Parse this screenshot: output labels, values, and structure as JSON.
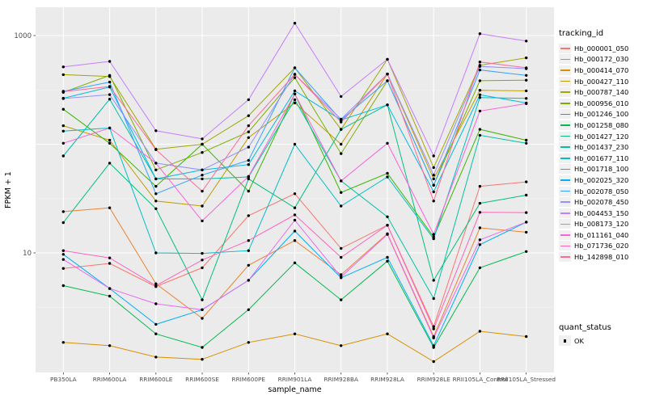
{
  "chart_data": {
    "type": "line",
    "title": "",
    "xlabel": "sample_name",
    "ylabel": "FPKM + 1",
    "y_scale": "log10",
    "y_tick_labels": [
      "1000",
      "10"
    ],
    "y_tick_values": [
      1000,
      10
    ],
    "y_gridlines_major": [
      10,
      100,
      1000
    ],
    "ylim": [
      0.8,
      1800
    ],
    "grid": true,
    "panel_bg": "#EBEBEB",
    "gridline_color": "#FFFFFF",
    "point_color": "#000000",
    "legend_position": "right",
    "legend_title": "tracking_id",
    "point_legend": {
      "title": "quant_status",
      "label": "OK"
    },
    "categories": [
      "PB350LA",
      "RRIM600LA",
      "RRIM600LE",
      "RRIM600SE",
      "RRIM600PE",
      "RRIM901LA",
      "RRIM928BA",
      "RRIM928LA",
      "RRIM928LE",
      "RRII105LA_Control",
      "RRII105LA_Stressed"
    ],
    "series": [
      {
        "name": "Hb_000001_050",
        "color": "#F8766D",
        "values": [
          7.2,
          8,
          4.9,
          7.3,
          22,
          35,
          11,
          18,
          2.1,
          41,
          45
        ]
      },
      {
        "name": "Hb_000172_030",
        "color": "#EA8331",
        "values": [
          24,
          26,
          5.2,
          2.5,
          7.7,
          13,
          6.3,
          15,
          1.7,
          17,
          15.5
        ]
      },
      {
        "name": "Hb_000414_070",
        "color": "#D89000",
        "values": [
          1.5,
          1.4,
          1.1,
          1.05,
          1.5,
          1.8,
          1.4,
          1.8,
          1,
          1.9,
          1.7
        ]
      },
      {
        "name": "Hb_000427_110",
        "color": "#C09B00",
        "values": [
          148,
          109,
          30,
          27,
          115,
          240,
          100,
          443,
          48,
          314,
          310
        ]
      },
      {
        "name": "Hb_000787_140",
        "color": "#A3A500",
        "values": [
          437,
          420,
          90,
          100,
          183,
          505,
          137,
          605,
          61,
          533,
          623
        ]
      },
      {
        "name": "Hb_000956_010",
        "color": "#7CAE00",
        "values": [
          300,
          430,
          58,
          84,
          130,
          410,
          82,
          384,
          42,
          384,
          389
        ]
      },
      {
        "name": "Hb_001246_100",
        "color": "#39B600",
        "values": [
          210,
          102,
          41,
          100,
          37,
          290,
          36,
          54,
          14,
          137,
          109
        ]
      },
      {
        "name": "Hb_001258_080",
        "color": "#00BB4E",
        "values": [
          5,
          4,
          1.8,
          1.35,
          3,
          8.1,
          3.7,
          8.4,
          1.35,
          7.3,
          10.3
        ]
      },
      {
        "name": "Hb_001427_120",
        "color": "#00BF7D",
        "values": [
          19,
          67,
          25.5,
          3.7,
          48,
          26,
          137,
          230,
          5.6,
          28.6,
          34
        ]
      },
      {
        "name": "Hb_001437_230",
        "color": "#00C1A3",
        "values": [
          78,
          260,
          48,
          48,
          50,
          257,
          46,
          21.5,
          3.8,
          121,
          102
        ]
      },
      {
        "name": "Hb_001677_110",
        "color": "#00BFC4",
        "values": [
          132,
          141,
          10,
          9.9,
          10.5,
          100,
          27,
          50,
          13.5,
          269,
          264
        ]
      },
      {
        "name": "Hb_001718_100",
        "color": "#00BAE0",
        "values": [
          265,
          336,
          48,
          58,
          65,
          310,
          167,
          230,
          36.5,
          285,
          240
        ]
      },
      {
        "name": "Hb_002025_320",
        "color": "#00B0F6",
        "values": [
          9.7,
          4.7,
          2.2,
          3,
          5.6,
          15.9,
          5.9,
          9.1,
          1.4,
          11.9,
          19.2
        ]
      },
      {
        "name": "Hb_002078_050",
        "color": "#35A2FF",
        "values": [
          307,
          373,
          35,
          52,
          71,
          505,
          167,
          384,
          42,
          482,
          430
        ]
      },
      {
        "name": "Hb_002078_450",
        "color": "#9590FF",
        "values": [
          263,
          286,
          67,
          58,
          94,
          440,
          170,
          443,
          52,
          520,
          496
        ]
      },
      {
        "name": "Hb_004453_150",
        "color": "#C77CFF",
        "values": [
          515,
          578,
          133,
          112,
          257,
          1300,
          275,
          605,
          78,
          1040,
          890
        ]
      },
      {
        "name": "Hb_008173_120",
        "color": "#E76BF3",
        "values": [
          8.7,
          4.7,
          3.4,
          3,
          5.6,
          20,
          6,
          14.8,
          1.65,
          13.2,
          19.2
        ]
      },
      {
        "name": "Hb_011161_040",
        "color": "#FA62DB",
        "values": [
          102,
          141,
          67,
          19.7,
          50.6,
          290,
          46,
          102,
          14.8,
          202,
          236
        ]
      },
      {
        "name": "Hb_071736_020",
        "color": "#FF62BC",
        "values": [
          10.5,
          9,
          5,
          8.6,
          13,
          22.4,
          9.1,
          18,
          2,
          23.6,
          23.5
        ]
      },
      {
        "name": "Hb_142898_010",
        "color": "#FF6A98",
        "values": [
          305,
          340,
          89,
          37,
          148,
          440,
          160,
          443,
          30,
          571,
          505
        ]
      }
    ]
  }
}
